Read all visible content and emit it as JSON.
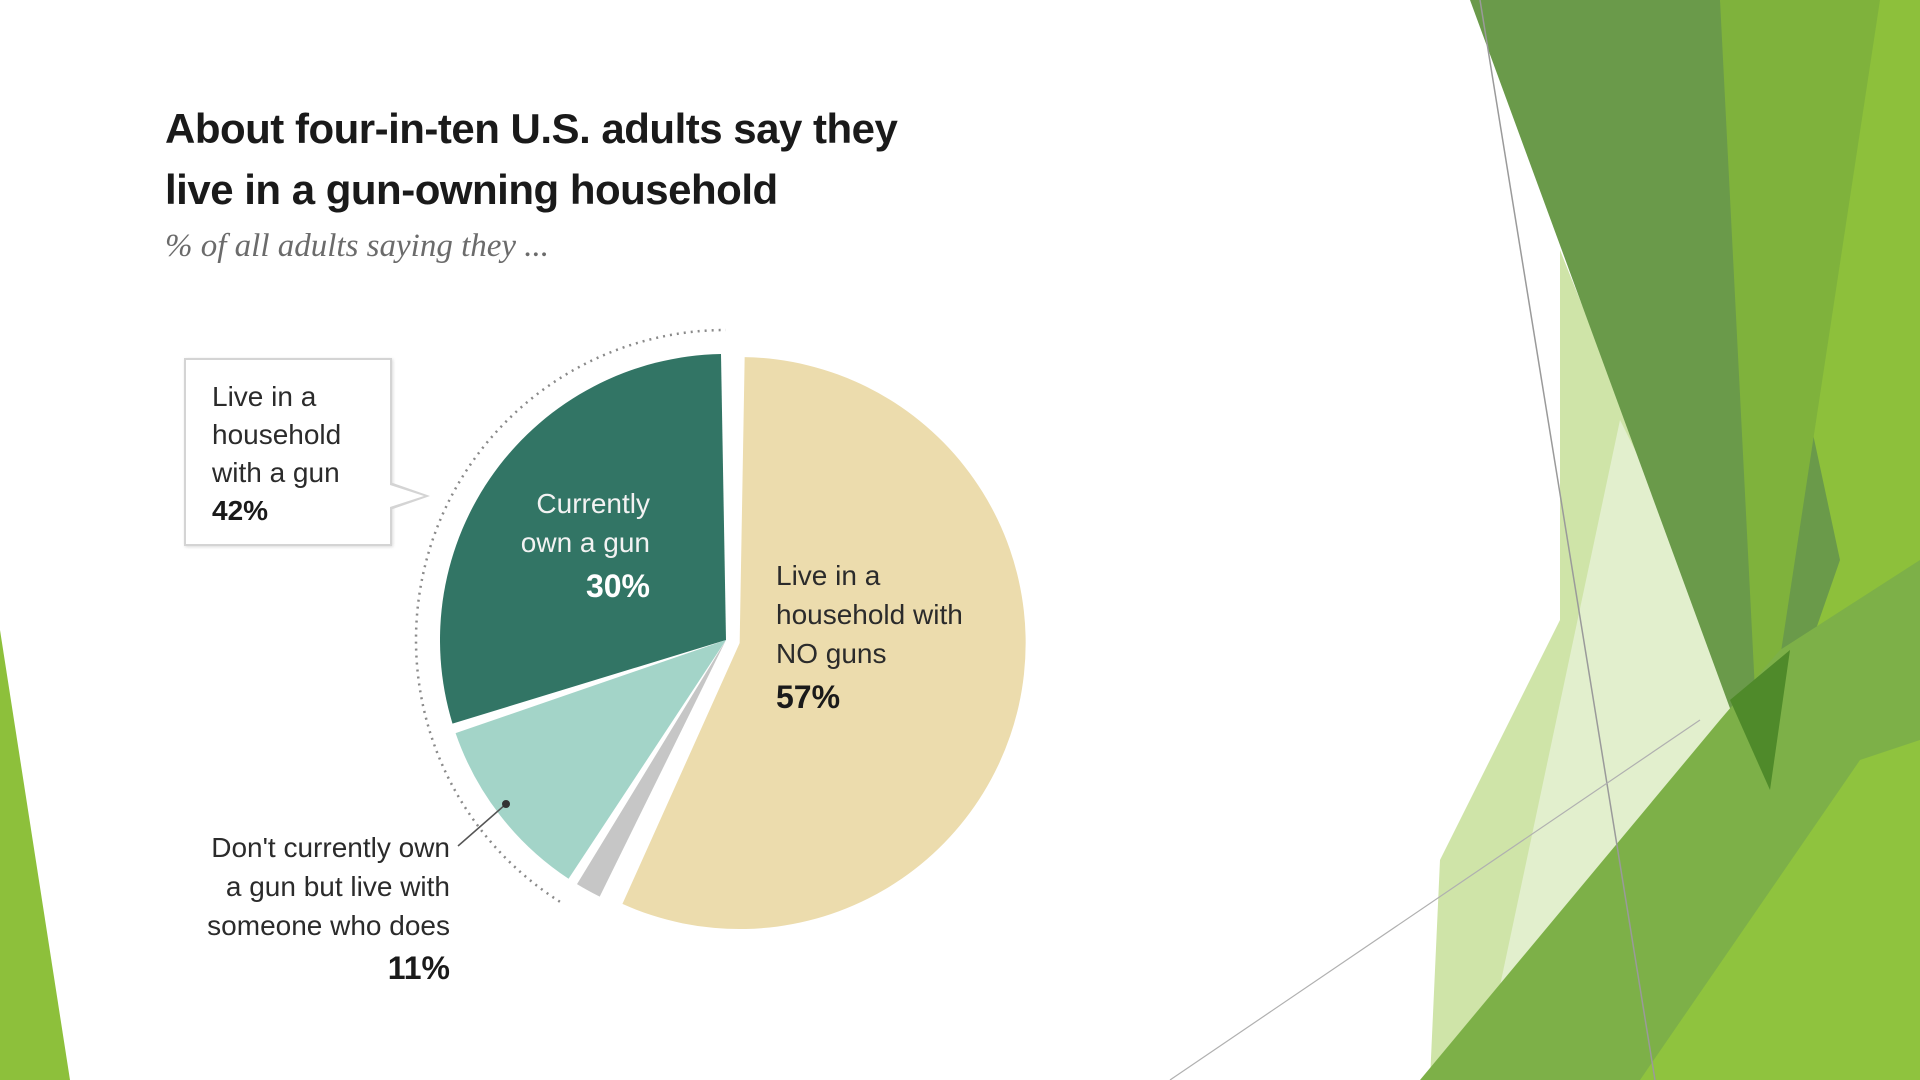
{
  "theme": {
    "background": "#ffffff",
    "accent_dark_green": "#6f9e4d",
    "accent_green": "#8dc03b",
    "accent_light_green": "#c5df9b"
  },
  "chart_data": {
    "type": "pie",
    "title": "About four-in-ten U.S. adults say they live in a gun-owning household",
    "title_lines": [
      "About four-in-ten U.S. adults say they",
      "live in a gun-owning household"
    ],
    "subtitle": "% of all adults saying they ...",
    "slices": [
      {
        "key": "no_guns",
        "label_lines": [
          "Live in a",
          "household with",
          "NO guns"
        ],
        "value": 57,
        "value_label": "57%",
        "color": "#ecdcad"
      },
      {
        "key": "other",
        "label_lines": [],
        "value": 2,
        "value_label": "",
        "color": "#c6c6c6"
      },
      {
        "key": "live_with_owner",
        "label_lines": [
          "Don't currently own",
          "a gun but live with",
          "someone who does"
        ],
        "value": 11,
        "value_label": "11%",
        "color": "#a3d4c8"
      },
      {
        "key": "own_gun",
        "label_lines": [
          "Currently",
          "own a gun"
        ],
        "value": 30,
        "value_label": "30%",
        "color": "#327565"
      }
    ],
    "callout": {
      "label_lines": [
        "Live in a",
        "household",
        "with a gun"
      ],
      "value": 42,
      "value_label": "42%"
    }
  }
}
